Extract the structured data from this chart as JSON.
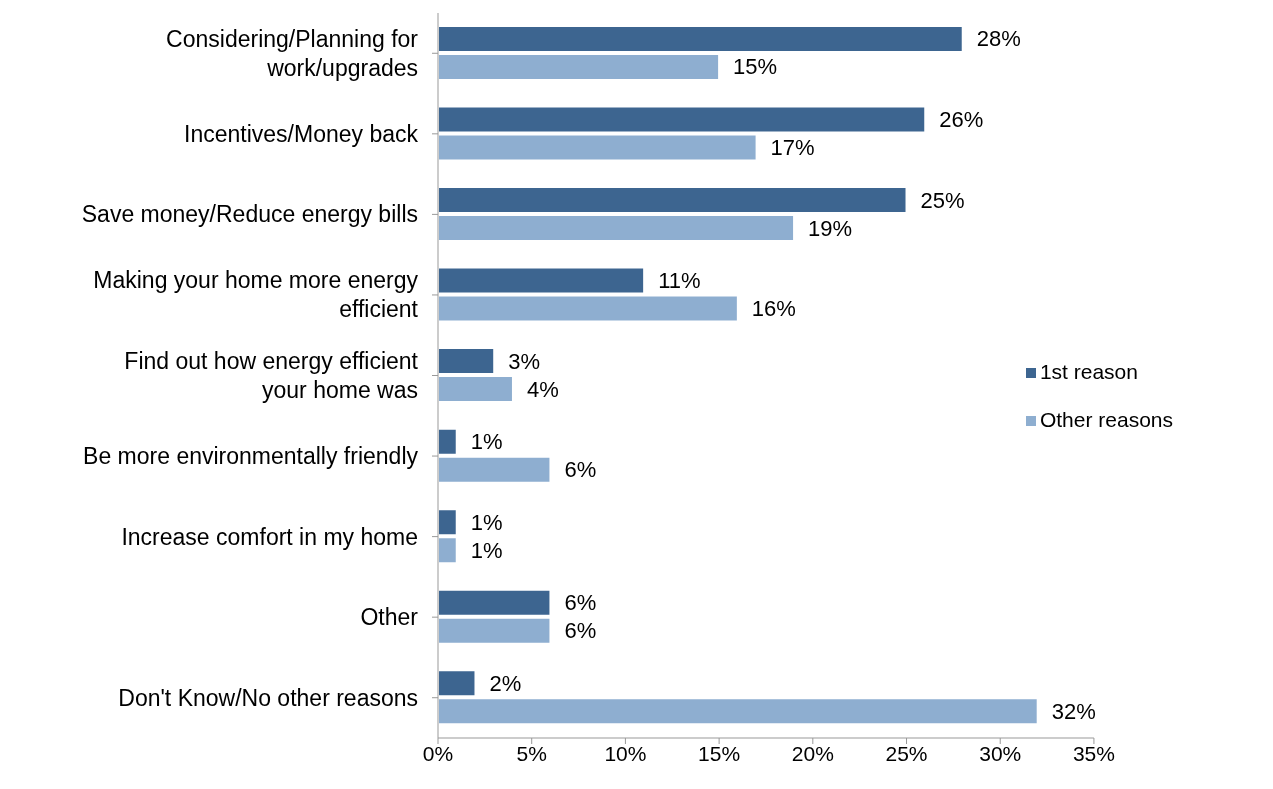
{
  "chart_data": {
    "type": "bar",
    "orientation": "horizontal",
    "categories": [
      "Considering/Planning for work/upgrades",
      "Incentives/Money back",
      "Save money/Reduce energy bills",
      "Making your home more energy efficient",
      "Find out how energy efficient your home was",
      "Be more environmentally friendly",
      "Increase comfort in my home",
      "Other",
      "Don't Know/No other reasons"
    ],
    "series": [
      {
        "name": "1st reason",
        "color": "#3d6590",
        "values": [
          28,
          26,
          25,
          11,
          3,
          1,
          1,
          6,
          2
        ],
        "value_labels": [
          "28%",
          "26%",
          "25%",
          "11%",
          "3%",
          "1%",
          "1%",
          "6%",
          "2%"
        ]
      },
      {
        "name": "Other reasons",
        "color": "#8eaed0",
        "values": [
          15,
          17,
          19,
          16,
          4,
          6,
          1,
          6,
          32
        ],
        "value_labels": [
          "15%",
          "17%",
          "19%",
          "16%",
          "4%",
          "6%",
          "1%",
          "6%",
          "32%"
        ]
      }
    ],
    "xlim": [
      0,
      35
    ],
    "xticks": [
      {
        "value": 0,
        "label": "0%"
      },
      {
        "value": 5,
        "label": "5%"
      },
      {
        "value": 10,
        "label": "10%"
      },
      {
        "value": 15,
        "label": "15%"
      },
      {
        "value": 20,
        "label": "20%"
      },
      {
        "value": 25,
        "label": "25%"
      },
      {
        "value": 30,
        "label": "30%"
      },
      {
        "value": 35,
        "label": "35%"
      }
    ],
    "grid": false,
    "legend": "right"
  }
}
